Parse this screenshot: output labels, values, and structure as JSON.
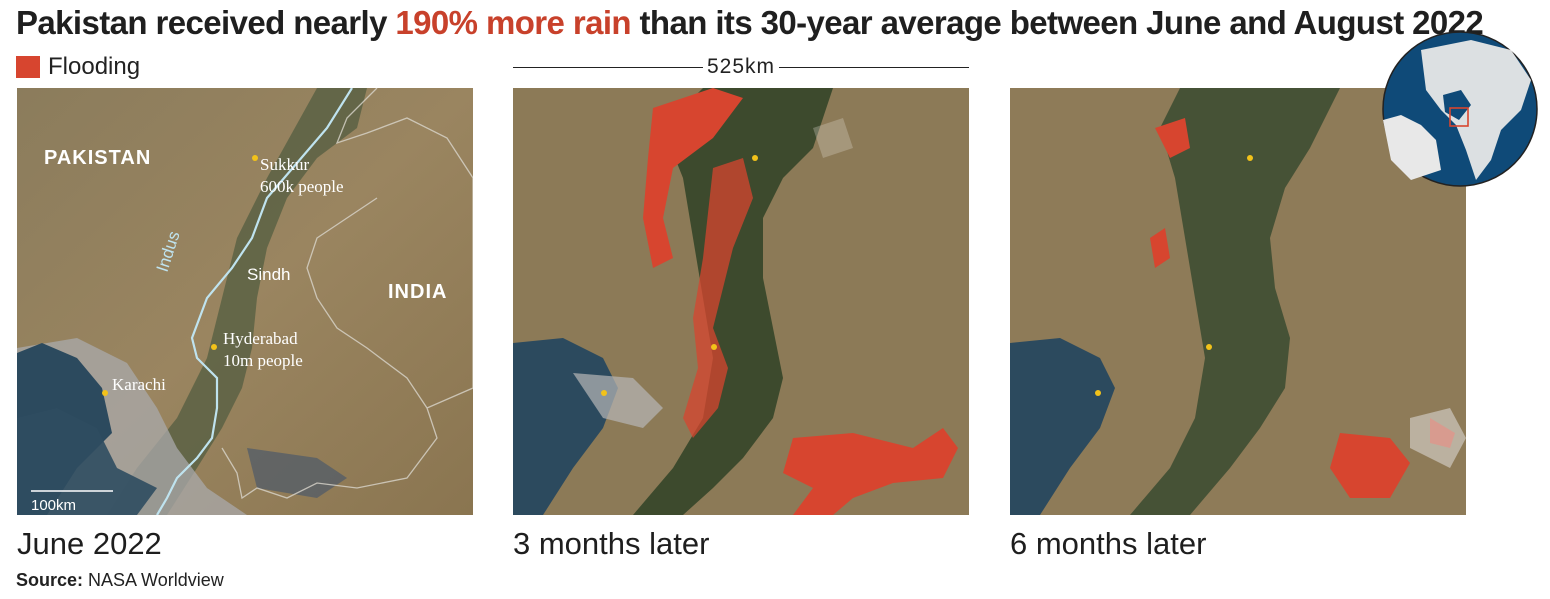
{
  "title": {
    "before": "Pakistan received nearly ",
    "highlight": "190% more rain",
    "after": " than its 30-year average between June and August 2022"
  },
  "legend": {
    "label": "Flooding",
    "color": "#d7452f"
  },
  "scale_top": "525km",
  "panels": [
    {
      "label": "June 2022"
    },
    {
      "label": "3 months later"
    },
    {
      "label": "6 months later"
    }
  ],
  "map_labels": {
    "country_pakistan": "PAKISTAN",
    "country_india": "INDIA",
    "river": "Indus",
    "region": "Sindh",
    "city_sukkur": "Sukkur",
    "city_sukkur_pop": "600k people",
    "city_hyderabad": "Hyderabad",
    "city_hyderabad_pop": "10m people",
    "city_karachi": "Karachi",
    "scale_small": "100km"
  },
  "source": {
    "prefix": "Source:",
    "text": " NASA Worldview"
  },
  "colors": {
    "accent": "#c8412b",
    "flood": "#d7452f",
    "sea": "#2c4a5e",
    "desert": "#8e7a56",
    "vegetation": "#4b5a35",
    "globe_ocean": "#0f4a78"
  }
}
